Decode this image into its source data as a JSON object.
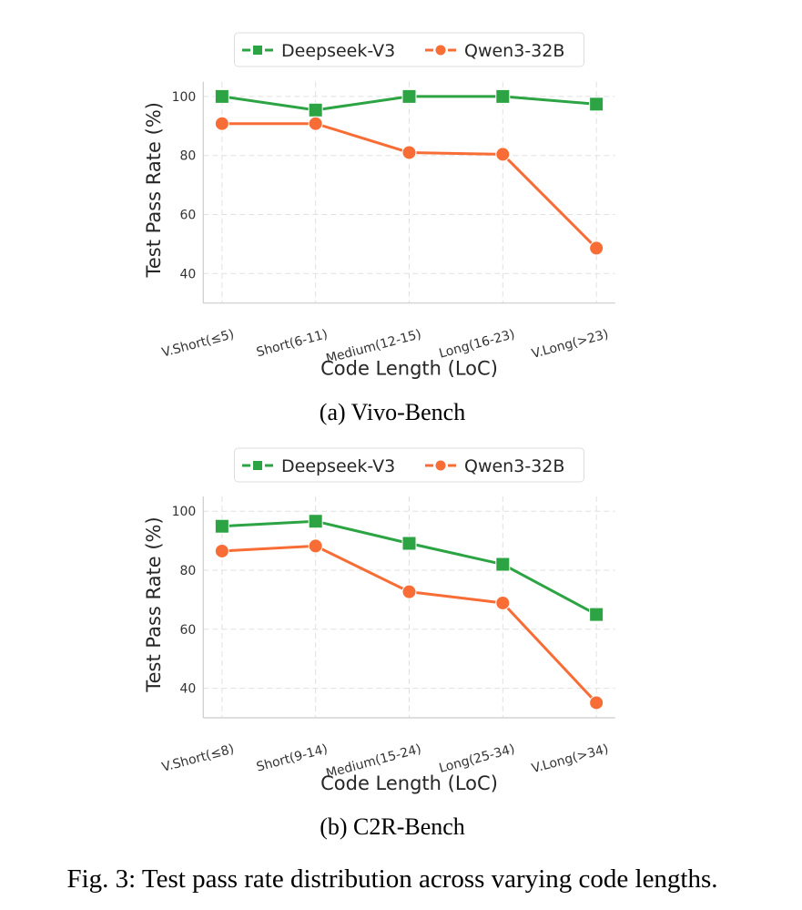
{
  "figure_caption": "Fig. 3: Test pass rate distribution across varying code lengths.",
  "colors": {
    "deepseek": "#2ca444",
    "qwen": "#f86d36"
  },
  "chart_data": [
    {
      "type": "line",
      "subcaption": "(a) Vivo-Bench",
      "title": "",
      "xlabel": "Code Length (LoC)",
      "ylabel": "Test Pass Rate (%)",
      "categories": [
        "V.Short(≤5)",
        "Short(6-11)",
        "Medium(12-15)",
        "Long(16-23)",
        "V.Long(>23)"
      ],
      "ylim": [
        30,
        105
      ],
      "yticks": [
        40,
        60,
        80,
        100
      ],
      "grid": true,
      "legend_position": "top-center",
      "series": [
        {
          "name": "Deepseek-V3",
          "marker": "square",
          "color_key": "deepseek",
          "values": [
            100.0,
            95.4,
            100.0,
            100.0,
            97.4
          ]
        },
        {
          "name": "Qwen3-32B",
          "marker": "circle",
          "color_key": "qwen",
          "values": [
            90.8,
            90.8,
            81.0,
            80.4,
            48.6
          ]
        }
      ]
    },
    {
      "type": "line",
      "subcaption": "(b) C2R-Bench",
      "title": "",
      "xlabel": "Code Length (LoC)",
      "ylabel": "Test Pass Rate (%)",
      "categories": [
        "V.Short(≤8)",
        "Short(9-14)",
        "Medium(15-24)",
        "Long(25-34)",
        "V.Long(>34)"
      ],
      "ylim": [
        30,
        105
      ],
      "yticks": [
        40,
        60,
        80,
        100
      ],
      "grid": true,
      "legend_position": "top-center",
      "series": [
        {
          "name": "Deepseek-V3",
          "marker": "square",
          "color_key": "deepseek",
          "values": [
            94.9,
            96.6,
            89.1,
            82.0,
            65.0
          ]
        },
        {
          "name": "Qwen3-32B",
          "marker": "circle",
          "color_key": "qwen",
          "values": [
            86.5,
            88.2,
            72.7,
            68.9,
            35.1
          ]
        }
      ]
    }
  ]
}
